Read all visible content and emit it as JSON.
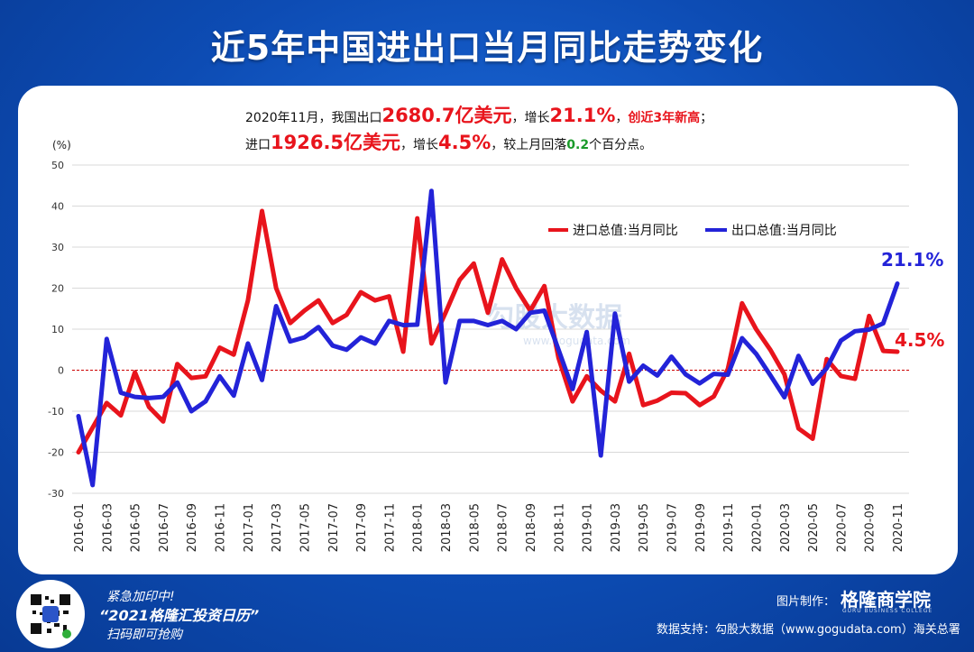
{
  "title": "近5年中国进出口当月同比走势变化",
  "summary": {
    "l1_a": "2020年11月，我国出口",
    "l1_val": "2680.7亿美元",
    "l1_b": "，增长",
    "l1_pct": "21.1%",
    "l1_c": "，",
    "l1_note": "创近3年新高",
    "l1_d": "；",
    "l2_a": "进口",
    "l2_val": "1926.5亿美元",
    "l2_b": "，增长",
    "l2_pct": "4.5%",
    "l2_c": "，较上月回落",
    "l2_drop": "0.2",
    "l2_d": "个百分点。"
  },
  "watermark": {
    "text": "勾股大数据",
    "url": "www.gogudata.com"
  },
  "footer": {
    "promo_line1": "紧急加印中!",
    "promo_line2": "“2021格隆汇投资日历”",
    "promo_line3": "扫码即可抢购",
    "maker_label": "图片制作：",
    "maker_name": "格隆商学院",
    "maker_sub": "GURU BUSINESS COLLEGE",
    "data_source": "数据支持：勾股大数据（www.gogudata.com）海关总署"
  },
  "colors": {
    "import": "#e8141c",
    "export": "#2323d8",
    "zero_line": "#cc0000"
  },
  "chart_data": {
    "type": "line",
    "title": "",
    "ylabel": "(%)",
    "xlabel": "",
    "ylim": [
      -30,
      50
    ],
    "yticks": [
      -30,
      -20,
      -10,
      0,
      10,
      20,
      30,
      40,
      50
    ],
    "grid": true,
    "legend": "top-right",
    "x": [
      "2016-01",
      "2016-02",
      "2016-03",
      "2016-04",
      "2016-05",
      "2016-06",
      "2016-07",
      "2016-08",
      "2016-09",
      "2016-10",
      "2016-11",
      "2016-12",
      "2017-01",
      "2017-02",
      "2017-03",
      "2017-04",
      "2017-05",
      "2017-06",
      "2017-07",
      "2017-08",
      "2017-09",
      "2017-10",
      "2017-11",
      "2017-12",
      "2018-01",
      "2018-02",
      "2018-03",
      "2018-04",
      "2018-05",
      "2018-06",
      "2018-07",
      "2018-08",
      "2018-09",
      "2018-10",
      "2018-11",
      "2018-12",
      "2019-01",
      "2019-02",
      "2019-03",
      "2019-04",
      "2019-05",
      "2019-06",
      "2019-07",
      "2019-08",
      "2019-09",
      "2019-10",
      "2019-11",
      "2019-12",
      "2020-01",
      "2020-02",
      "2020-03",
      "2020-04",
      "2020-05",
      "2020-06",
      "2020-07",
      "2020-08",
      "2020-09",
      "2020-10",
      "2020-11"
    ],
    "xticks": [
      "2016-01",
      "2016-03",
      "2016-05",
      "2016-07",
      "2016-09",
      "2016-11",
      "2017-01",
      "2017-03",
      "2017-05",
      "2017-07",
      "2017-09",
      "2017-11",
      "2018-01",
      "2018-03",
      "2018-05",
      "2018-07",
      "2018-09",
      "2018-11",
      "2019-01",
      "2019-03",
      "2019-05",
      "2019-07",
      "2019-09",
      "2019-11",
      "2020-01",
      "2020-03",
      "2020-05",
      "2020-07",
      "2020-09",
      "2020-11"
    ],
    "series": [
      {
        "name": "进口总值:当月同比",
        "color": "#e8141c",
        "values": [
          -20,
          -14,
          -8,
          -11,
          -0.5,
          -9,
          -12.5,
          1.5,
          -1.9,
          -1.5,
          5.5,
          3.8,
          17,
          38.8,
          20,
          11.5,
          14.5,
          17,
          11.5,
          13.5,
          19,
          17,
          18,
          4.5,
          37,
          6.5,
          14,
          22,
          26,
          14,
          27,
          20,
          14.5,
          20.5,
          3,
          -7.6,
          -1.5,
          -5,
          -7.6,
          4,
          -8.5,
          -7.4,
          -5.5,
          -5.6,
          -8.5,
          -6.4,
          0.3,
          16.3,
          10,
          5,
          -1,
          -14.2,
          -16.7,
          2.7,
          -1.4,
          -2.1,
          13.2,
          4.7,
          4.5
        ]
      },
      {
        "name": "出口总值:当月同比",
        "color": "#2323d8",
        "values": [
          -11.2,
          -28,
          7.6,
          -5.5,
          -6.5,
          -6.8,
          -6.5,
          -3,
          -10,
          -7.6,
          -1.5,
          -6.2,
          6.5,
          -2.4,
          15.6,
          7,
          8,
          10.5,
          6,
          5,
          8,
          6.5,
          12,
          11,
          11.1,
          43.7,
          -3,
          12,
          12,
          11,
          12,
          10,
          14,
          14.5,
          5,
          -4.6,
          9.3,
          -20.8,
          13.8,
          -2.8,
          1.1,
          -1.3,
          3.3,
          -1,
          -3.2,
          -0.9,
          -1.1,
          7.8,
          4,
          -1.2,
          -6.6,
          3.5,
          -3.3,
          0.5,
          7.2,
          9.5,
          9.9,
          11.4,
          21.1
        ]
      }
    ],
    "end_labels": {
      "import": "4.5%",
      "export": "21.1%"
    }
  }
}
